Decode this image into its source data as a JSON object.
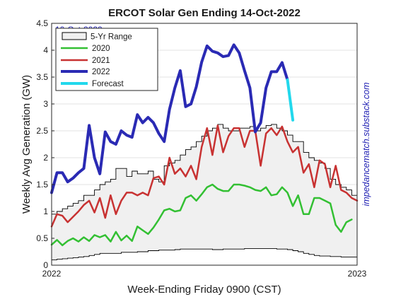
{
  "chart_data": {
    "type": "line",
    "title": "ERCOT Solar Gen Ending 14-Oct-2022",
    "xlabel": "Week-Ending Friday 0900 (CST)",
    "ylabel": "Weekly Avg Generation (GW)",
    "side_label": "impedancematch.substack.com",
    "date_stamp": "10-Oct-2022",
    "xlim": [
      0,
      57
    ],
    "ylim": [
      0,
      4.5
    ],
    "x_ticks": [
      {
        "x": 0,
        "label": "2022"
      },
      {
        "x": 57,
        "label": "2023"
      }
    ],
    "y_ticks": [
      0,
      0.5,
      1,
      1.5,
      2,
      2.5,
      3,
      3.5,
      4,
      4.5
    ],
    "y_tick_labels": [
      "0",
      "0.5",
      "1",
      "1.5",
      "2",
      "2.5",
      "3",
      "3.5",
      "4",
      "4.5"
    ],
    "grid": true,
    "legend_position": "top-left",
    "colors": {
      "range_fill": "#f0f0f0",
      "range_edge": "#000000",
      "2020": "#33c033",
      "2021": "#c83232",
      "2022": "#2a2ab4",
      "Forecast": "#22d8ec"
    },
    "range": {
      "name": "5-Yr Range",
      "x": [
        0,
        1,
        2,
        3,
        4,
        5,
        6,
        7,
        8,
        9,
        10,
        11,
        12,
        13,
        14,
        15,
        16,
        17,
        18,
        19,
        20,
        21,
        22,
        23,
        24,
        25,
        26,
        27,
        28,
        29,
        30,
        31,
        32,
        33,
        34,
        35,
        36,
        37,
        38,
        39,
        40,
        41,
        42,
        43,
        44,
        45,
        46,
        47,
        48,
        49,
        50,
        51,
        52,
        53,
        54,
        55,
        56,
        57
      ],
      "upper": [
        0.95,
        1.0,
        1.05,
        1.1,
        1.15,
        1.2,
        1.3,
        1.3,
        1.4,
        1.5,
        1.55,
        1.6,
        1.8,
        1.8,
        1.65,
        1.75,
        1.7,
        1.7,
        1.75,
        1.6,
        1.55,
        1.85,
        1.9,
        1.95,
        2.05,
        2.15,
        2.2,
        2.3,
        2.4,
        2.5,
        2.55,
        2.62,
        2.55,
        2.5,
        2.5,
        2.55,
        2.55,
        2.58,
        2.5,
        2.55,
        2.6,
        2.62,
        2.55,
        2.5,
        2.42,
        2.3,
        2.3,
        2.1,
        2.0,
        1.95,
        1.9,
        1.8,
        1.6,
        1.5,
        1.45,
        1.4,
        1.3,
        1.25
      ],
      "lower": [
        0.1,
        0.11,
        0.12,
        0.13,
        0.14,
        0.15,
        0.16,
        0.18,
        0.2,
        0.22,
        0.22,
        0.22,
        0.22,
        0.24,
        0.24,
        0.24,
        0.25,
        0.25,
        0.27,
        0.27,
        0.28,
        0.28,
        0.28,
        0.29,
        0.3,
        0.3,
        0.3,
        0.3,
        0.3,
        0.3,
        0.29,
        0.29,
        0.3,
        0.3,
        0.3,
        0.3,
        0.31,
        0.31,
        0.31,
        0.31,
        0.31,
        0.31,
        0.3,
        0.3,
        0.29,
        0.27,
        0.25,
        0.22,
        0.2,
        0.18,
        0.17,
        0.17,
        0.16,
        0.16,
        0.15,
        0.15,
        0.15,
        0.15
      ]
    },
    "series": [
      {
        "name": "2020",
        "x": [
          0,
          1,
          2,
          3,
          4,
          5,
          6,
          7,
          8,
          9,
          10,
          11,
          12,
          13,
          14,
          15,
          16,
          17,
          18,
          19,
          20,
          21,
          22,
          23,
          24,
          25,
          26,
          27,
          28,
          29,
          30,
          31,
          32,
          33,
          34,
          35,
          36,
          37,
          38,
          39,
          40,
          41,
          42,
          43,
          44,
          45,
          46,
          47,
          48,
          49,
          50,
          51,
          52,
          53,
          54,
          55,
          56
        ],
        "values": [
          0.38,
          0.47,
          0.37,
          0.45,
          0.5,
          0.44,
          0.52,
          0.45,
          0.56,
          0.52,
          0.56,
          0.44,
          0.62,
          0.46,
          0.55,
          0.45,
          0.72,
          0.65,
          0.58,
          0.7,
          0.85,
          1.02,
          1.05,
          1.0,
          1.02,
          1.25,
          1.3,
          1.2,
          1.32,
          1.45,
          1.5,
          1.42,
          1.38,
          1.38,
          1.5,
          1.5,
          1.48,
          1.45,
          1.4,
          1.38,
          1.45,
          1.3,
          1.32,
          1.45,
          1.35,
          1.1,
          1.3,
          0.95,
          0.95,
          1.25,
          1.25,
          1.2,
          1.15,
          0.75,
          0.62,
          0.8,
          0.85
        ]
      },
      {
        "name": "2021",
        "x": [
          0,
          1,
          2,
          3,
          4,
          5,
          6,
          7,
          8,
          9,
          10,
          11,
          12,
          13,
          14,
          15,
          16,
          17,
          18,
          19,
          20,
          21,
          22,
          23,
          24,
          25,
          26,
          27,
          28,
          29,
          30,
          31,
          32,
          33,
          34,
          35,
          36,
          37,
          38,
          39,
          40,
          41,
          42,
          43,
          44,
          45,
          46,
          47,
          48,
          49,
          50,
          51,
          52,
          53,
          54,
          55,
          56,
          57
        ],
        "values": [
          0.72,
          0.95,
          0.92,
          0.8,
          0.9,
          1.0,
          1.12,
          1.2,
          0.98,
          1.25,
          0.88,
          1.3,
          0.95,
          1.2,
          1.35,
          1.35,
          1.3,
          1.35,
          1.3,
          1.62,
          1.65,
          1.5,
          2.0,
          1.7,
          1.8,
          1.65,
          1.85,
          1.6,
          2.2,
          2.55,
          2.05,
          2.6,
          2.1,
          2.4,
          2.55,
          2.55,
          2.2,
          2.5,
          2.5,
          1.85,
          2.45,
          2.55,
          2.42,
          2.58,
          2.3,
          2.1,
          2.2,
          1.72,
          1.88,
          1.45,
          1.95,
          1.88,
          1.45,
          1.85,
          1.4,
          1.35,
          1.25,
          1.2
        ]
      },
      {
        "name": "2022",
        "x": [
          0,
          1,
          2,
          3,
          4,
          5,
          6,
          7,
          8,
          9,
          10,
          11,
          12,
          13,
          14,
          15,
          16,
          17,
          18,
          19,
          20,
          21,
          22,
          23,
          24,
          25,
          26,
          27,
          28,
          29,
          30,
          31,
          32,
          33,
          34,
          35,
          36,
          37,
          38,
          39,
          40,
          41,
          42,
          43,
          44
        ],
        "values": [
          1.35,
          1.72,
          1.72,
          1.55,
          1.62,
          1.72,
          1.8,
          2.6,
          2.0,
          1.7,
          2.48,
          2.3,
          2.25,
          2.5,
          2.42,
          2.38,
          2.8,
          2.65,
          2.75,
          2.65,
          2.45,
          2.3,
          2.9,
          3.3,
          3.62,
          2.95,
          3.0,
          3.32,
          3.78,
          4.08,
          3.98,
          3.95,
          3.88,
          3.9,
          4.1,
          3.95,
          3.62,
          3.3,
          2.48,
          2.65,
          3.3,
          3.6,
          3.6,
          3.77,
          3.45
        ]
      },
      {
        "name": "Forecast",
        "x": [
          44,
          45
        ],
        "values": [
          3.45,
          2.7
        ]
      }
    ]
  }
}
